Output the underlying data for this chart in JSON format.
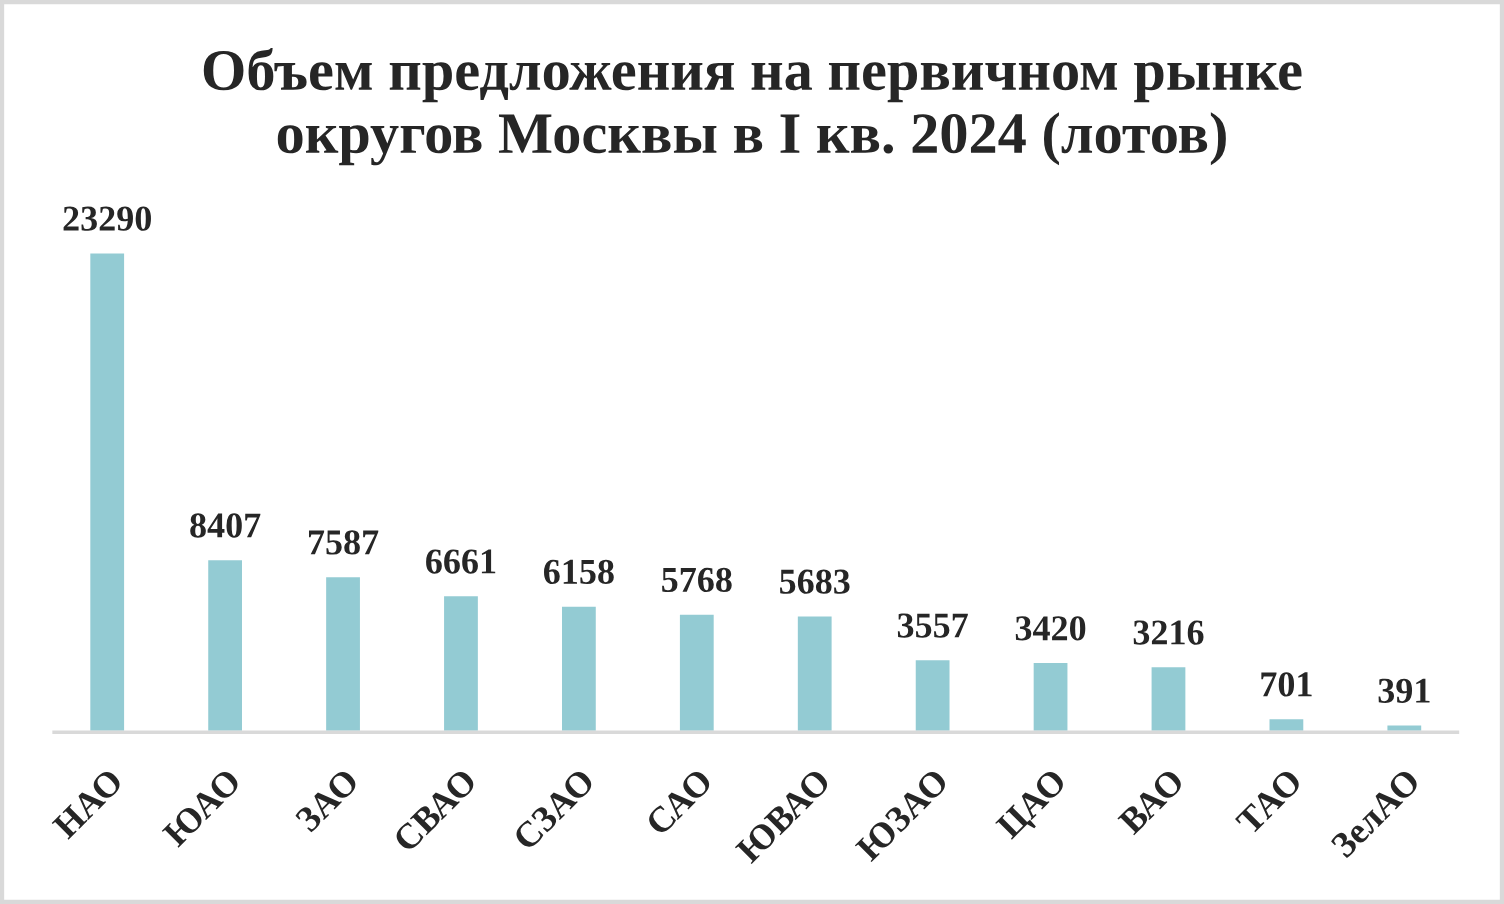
{
  "chart_data": {
    "type": "bar",
    "title": "Объем предложения на первичном рынке\nокругов Москвы в I кв. 2024 (лотов)",
    "categories": [
      "НАО",
      "ЮАО",
      "ЗАО",
      "СВАО",
      "СЗАО",
      "САО",
      "ЮВАО",
      "ЮЗАО",
      "ЦАО",
      "ВАО",
      "ТАО",
      "ЗелАО"
    ],
    "values": [
      23290,
      8407,
      7587,
      6661,
      6158,
      5768,
      5683,
      3557,
      3420,
      3216,
      701,
      391
    ],
    "color": "#93cbd3",
    "data_labels": true
  }
}
